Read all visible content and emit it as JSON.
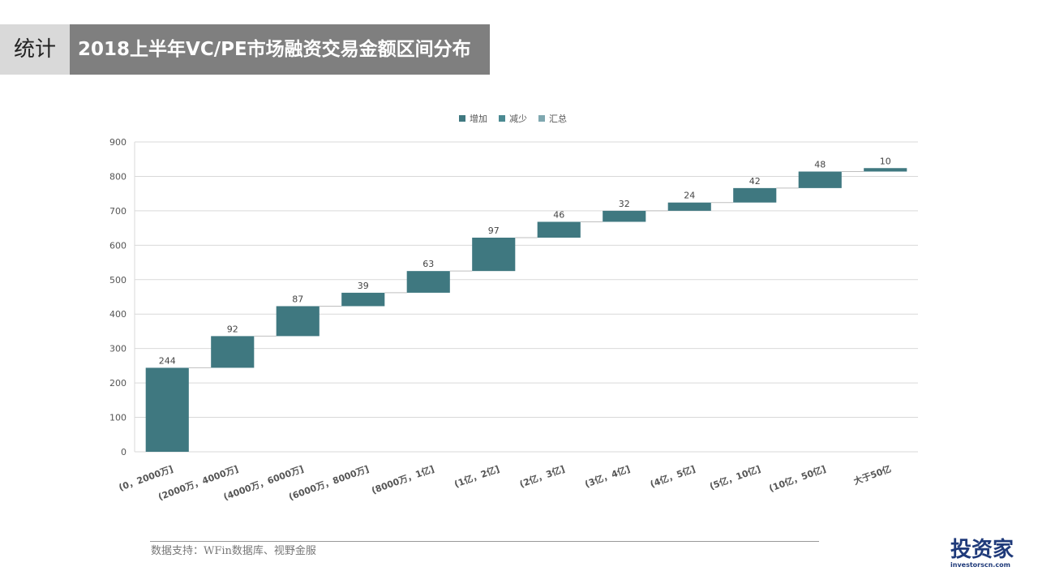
{
  "header": {
    "tag": "统计",
    "title": "2018上半年VC/PE市场融资交易金额区间分布"
  },
  "chart_data": {
    "type": "waterfall",
    "legend": [
      {
        "name": "增加",
        "color": "#3f7880"
      },
      {
        "name": "减少",
        "color": "#4b8a92"
      },
      {
        "name": "汇总",
        "color": "#7fa8b0"
      }
    ],
    "categories": [
      "(0，2000万]",
      "(2000万，4000万]",
      "(4000万，6000万]",
      "(6000万，8000万]",
      "(8000万，1亿]",
      "(1亿，2亿]",
      "(2亿，3亿]",
      "(3亿，4亿]",
      "(4亿，5亿]",
      "(5亿，10亿]",
      "(10亿，50亿]",
      "大于50亿"
    ],
    "values": [
      244,
      92,
      87,
      39,
      63,
      97,
      46,
      32,
      24,
      42,
      48,
      10
    ],
    "ylim": [
      0,
      900
    ],
    "yticks": [
      0,
      100,
      200,
      300,
      400,
      500,
      600,
      700,
      800,
      900
    ],
    "grid": true
  },
  "footer": {
    "source": "数据支持：WFin数据库、视野金服",
    "logo": "投资家",
    "logo_sub": "investorscn.com"
  }
}
